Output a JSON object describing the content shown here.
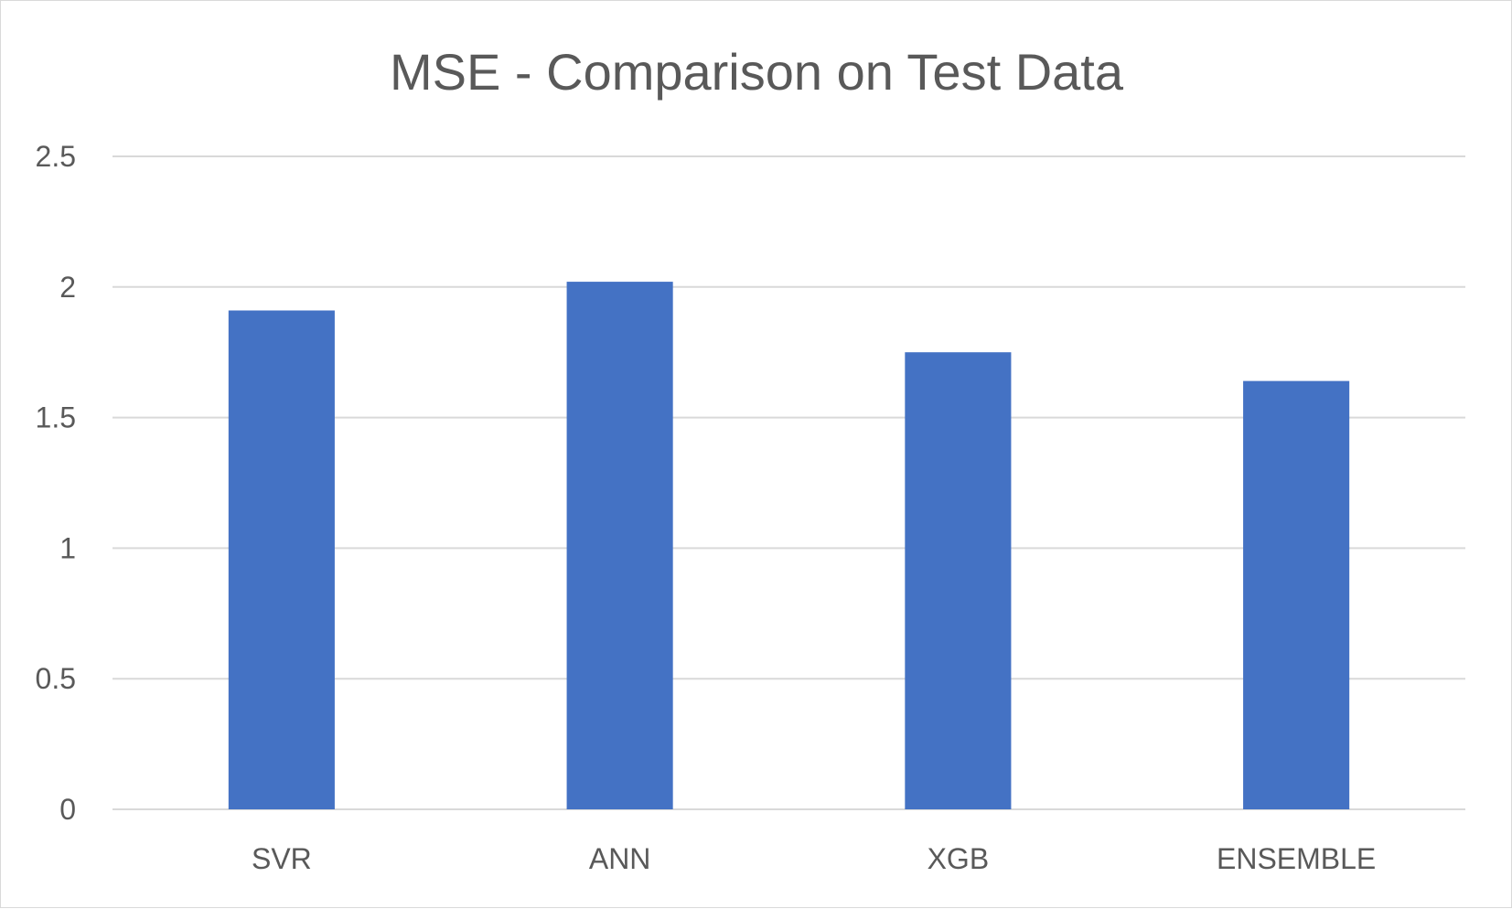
{
  "chart_data": {
    "type": "bar",
    "title": "MSE - Comparison on Test Data",
    "categories": [
      "SVR",
      "ANN",
      "XGB",
      "ENSEMBLE"
    ],
    "values": [
      1.91,
      2.02,
      1.75,
      1.64
    ],
    "ylim": [
      0,
      2.5
    ],
    "yticks": [
      "0",
      "0.5",
      "1",
      "1.5",
      "2",
      "2.5"
    ],
    "grid": true,
    "legend": "none",
    "bar_color": "#4472c4"
  }
}
